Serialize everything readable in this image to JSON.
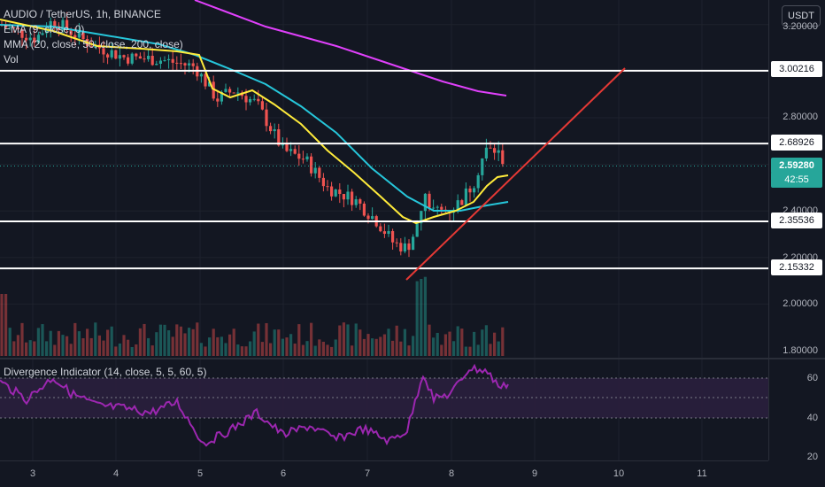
{
  "legend": {
    "symbol": "AUDIO / TetherUS, 1h, BINANCE",
    "ema": "EMA (9, close, 0)",
    "mma": "MMA (20, close, 50, close, 200, close)",
    "vol": "Vol"
  },
  "price_scale": {
    "currency": "USDT",
    "ticks": [
      "3.20000",
      "2.80000",
      "2.40000",
      "2.20000",
      "2.00000",
      "1.80000"
    ],
    "levels": [
      "3.00216",
      "2.68926",
      "2.35536",
      "2.15332"
    ],
    "last_price": "2.59280",
    "countdown": "42:55"
  },
  "divergence": {
    "title": "Divergence Indicator (14, close, 5, 5, 60, 5)",
    "ticks": [
      "60",
      "40",
      "20"
    ]
  },
  "time_axis": [
    "3",
    "4",
    "5",
    "6",
    "7",
    "8",
    "9",
    "10",
    "11"
  ],
  "colors": {
    "background": "#131722",
    "up": "#26a69a",
    "down": "#ef5350",
    "ema": "#ffeb3b",
    "mma50": "#26c6da",
    "mma200": "#e040fb",
    "trendline": "#e53935",
    "levels": "#ffffff",
    "divergence": "#9c27b0"
  },
  "chart_data": {
    "type": "candlestick",
    "price_range": [
      1.78,
      3.24
    ],
    "horizontal_levels": [
      3.00216,
      2.68926,
      2.35536,
      2.15332
    ],
    "last_price": 2.5928
  }
}
